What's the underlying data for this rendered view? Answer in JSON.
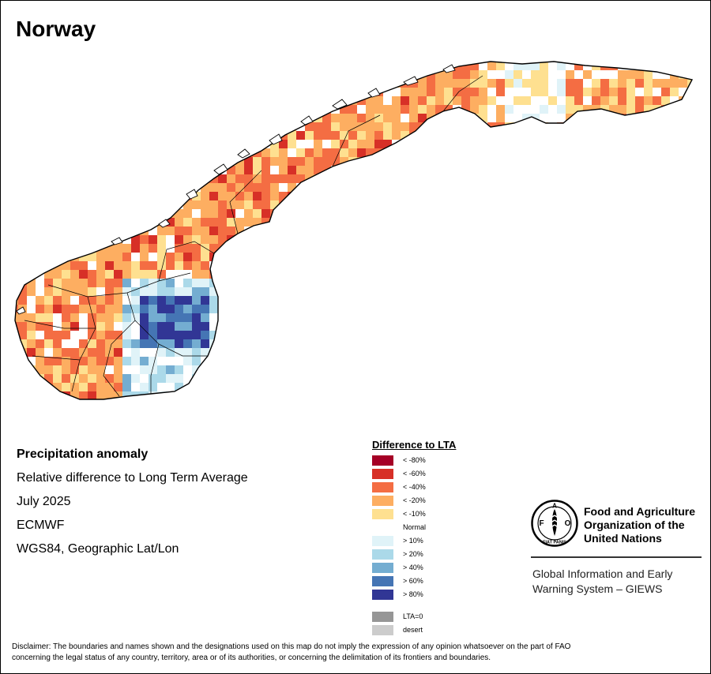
{
  "map": {
    "title": "Norway",
    "caption": {
      "heading": "Precipitation anomaly",
      "subtitle": "Relative difference to Long Term Average",
      "period": "July 2025",
      "source": "ECMWF",
      "projection": "WGS84, Geographic Lat/Lon"
    }
  },
  "legend": {
    "title": "Difference to LTA",
    "classes": [
      {
        "label": "< -80%",
        "color": "#a50026"
      },
      {
        "label": "< -60%",
        "color": "#d73027"
      },
      {
        "label": "< -40%",
        "color": "#f46d43"
      },
      {
        "label": "< -20%",
        "color": "#fdae61"
      },
      {
        "label": "< -10%",
        "color": "#fee090"
      },
      {
        "label": "Normal",
        "color": "#ffffff"
      },
      {
        "label": "> 10%",
        "color": "#e0f3f8"
      },
      {
        "label": "> 20%",
        "color": "#abd9e9"
      },
      {
        "label": "> 40%",
        "color": "#74add1"
      },
      {
        "label": "> 60%",
        "color": "#4575b4"
      },
      {
        "label": "> 80%",
        "color": "#313695"
      }
    ],
    "extra": [
      {
        "label": "LTA=0",
        "color": "#969696"
      },
      {
        "label": "desert",
        "color": "#cccccc"
      }
    ]
  },
  "org": {
    "name_line1": "Food and Agriculture",
    "name_line2": "Organization of the",
    "name_line3": "United Nations",
    "system_line1": "Global Information and Early",
    "system_line2": "Warning System – GIEWS",
    "logo_letters": [
      "F",
      "A",
      "O"
    ],
    "logo_motto": "FIAT PANIS"
  },
  "disclaimer": {
    "line1": "Disclaimer: The boundaries and names shown and the designations used on this map do not imply the expression of any opinion whatsoever on the part of FAO",
    "line2": "concerning the legal status of any country, territory, area or of its authorities, or concerning the delimitation of its frontiers and boundaries."
  }
}
